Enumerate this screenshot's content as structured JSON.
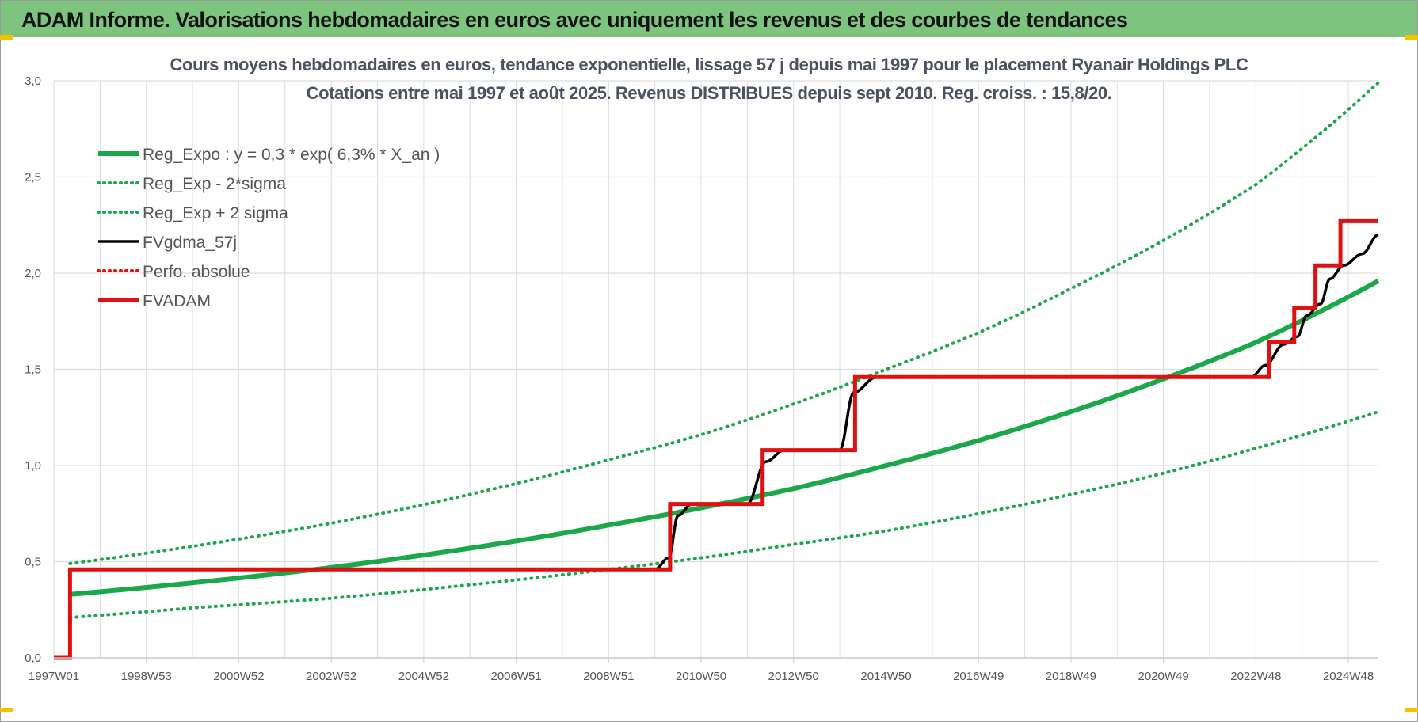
{
  "header": {
    "title": "ADAM Informe. Valorisations hebdomadaires en euros avec uniquement les revenus et des courbes de tendances"
  },
  "colors": {
    "header_bg": "#7dc57e",
    "trend_green": "#1aa84a",
    "fv_black": "#000000",
    "adam_red": "#e01010",
    "grid": "#d9dde4"
  },
  "chart_data": {
    "type": "line",
    "title": "Cours moyens hebdomadaires en euros, tendance exponentielle, lissage 57 j depuis mai 1997 pour le placement Ryanair Holdings PLC",
    "subtitle": "Cotations entre mai 1997 et août 2025.  Revenus DISTRIBUES depuis sept 2010.  Reg. croiss. : 15,8/20.",
    "xlabel": "",
    "ylabel": "",
    "x_range": [
      1997.0,
      2025.65
    ],
    "ylim": [
      0,
      3.0
    ],
    "y_ticks": [
      "0,0",
      "0,5",
      "1,0",
      "1,5",
      "2,0",
      "2,5",
      "3,0"
    ],
    "y_tick_values": [
      0,
      0.5,
      1.0,
      1.5,
      2.0,
      2.5,
      3.0
    ],
    "x_tick_labels": [
      "1997W01",
      "1998W53",
      "2000W52",
      "2002W52",
      "2004W52",
      "2006W51",
      "2008W51",
      "2010W50",
      "2012W50",
      "2014W50",
      "2016W49",
      "2018W49",
      "2020W49",
      "2022W48",
      "2024W48"
    ],
    "x_tick_values": [
      1997.0,
      1999.0,
      2001.0,
      2003.0,
      2005.0,
      2007.0,
      2009.0,
      2011.0,
      2013.0,
      2015.0,
      2017.0,
      2019.0,
      2021.0,
      2023.0,
      2025.0
    ],
    "grid": true,
    "legend_position": "top-left",
    "series": [
      {
        "name": "Reg_Expo : y = 0,3 * exp( 6,3% *  X_an )",
        "style": "solid",
        "color": "#1aa84a",
        "x": [
          1997.35,
          2000,
          2003,
          2006,
          2009,
          2011,
          2013,
          2015,
          2017,
          2019,
          2021,
          2023,
          2025.65
        ],
        "y": [
          0.33,
          0.39,
          0.47,
          0.57,
          0.69,
          0.78,
          0.88,
          1.0,
          1.13,
          1.28,
          1.45,
          1.64,
          1.96
        ]
      },
      {
        "name": "Reg_Exp - 2*sigma",
        "style": "dotted",
        "color": "#1aa84a",
        "x": [
          1997.35,
          2000,
          2003,
          2006,
          2009,
          2011,
          2013,
          2015,
          2017,
          2019,
          2021,
          2023,
          2025.65
        ],
        "y": [
          0.21,
          0.26,
          0.31,
          0.38,
          0.46,
          0.52,
          0.59,
          0.66,
          0.75,
          0.85,
          0.96,
          1.09,
          1.28
        ]
      },
      {
        "name": "Reg_Exp + 2 sigma",
        "style": "dotted",
        "color": "#1aa84a",
        "x": [
          1997.35,
          2000,
          2003,
          2006,
          2009,
          2011,
          2013,
          2015,
          2017,
          2019,
          2021,
          2023,
          2025.65
        ],
        "y": [
          0.49,
          0.58,
          0.7,
          0.85,
          1.03,
          1.16,
          1.32,
          1.5,
          1.69,
          1.92,
          2.17,
          2.46,
          2.99
        ]
      },
      {
        "name": "FVgdma_57j",
        "style": "solid",
        "color": "#000000",
        "x": [
          1997.0,
          1997.35,
          1997.35,
          2010.0,
          2010.3,
          2010.5,
          2010.8,
          2012.0,
          2012.4,
          2012.8,
          2014.0,
          2014.3,
          2014.8,
          2022.9,
          2023.2,
          2023.6,
          2023.9,
          2024.1,
          2024.4,
          2024.6,
          2024.9,
          2025.3,
          2025.65
        ],
        "y": [
          0.0,
          0.0,
          0.46,
          0.46,
          0.52,
          0.74,
          0.8,
          0.8,
          1.02,
          1.08,
          1.08,
          1.38,
          1.46,
          1.46,
          1.52,
          1.63,
          1.67,
          1.78,
          1.84,
          1.97,
          2.04,
          2.1,
          2.2
        ]
      },
      {
        "name": "Perfo. absolue",
        "style": "dotted",
        "color": "#e01010",
        "x": [],
        "y": []
      },
      {
        "name": "FVADAM",
        "style": "step",
        "color": "#e01010",
        "x": [
          1997.0,
          1997.35,
          1997.35,
          2010.33,
          2010.33,
          2012.33,
          2012.33,
          2014.33,
          2014.33,
          2023.29,
          2023.29,
          2023.83,
          2023.83,
          2024.29,
          2024.29,
          2024.83,
          2024.83,
          2025.6,
          2025.6,
          2025.65
        ],
        "y": [
          0.0,
          0.0,
          0.46,
          0.46,
          0.8,
          0.8,
          1.08,
          1.08,
          1.46,
          1.46,
          1.64,
          1.64,
          1.82,
          1.82,
          2.04,
          2.04,
          2.27,
          2.27,
          2.27,
          2.27
        ]
      }
    ]
  }
}
